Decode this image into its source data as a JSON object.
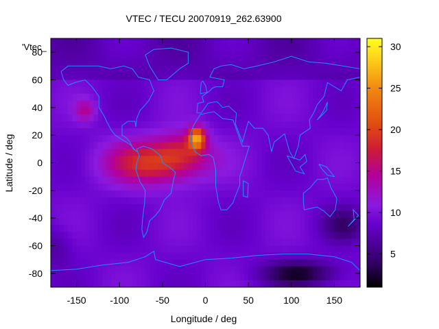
{
  "chart_data": {
    "type": "heatmap",
    "title": "VTEC / TECU 20070919_262.63900",
    "series_label": "'Vtec_",
    "xlabel": "Longitude / deg",
    "ylabel": "Latitude / deg",
    "xlim": [
      -180,
      180
    ],
    "ylim": [
      -90,
      90
    ],
    "x_ticks": [
      -150,
      -100,
      -50,
      0,
      50,
      100,
      150
    ],
    "y_ticks": [
      80,
      60,
      40,
      20,
      0,
      -20,
      -40,
      -60,
      -80
    ],
    "colorbar": {
      "range": [
        1,
        31
      ],
      "ticks": [
        5,
        10,
        15,
        20,
        25,
        30
      ],
      "palette": [
        "#000000",
        "#330066",
        "#6600cc",
        "#8a1adf",
        "#b3009a",
        "#cc1a3a",
        "#e04a10",
        "#f08a10",
        "#ffd21a",
        "#ffff20"
      ]
    },
    "coastline_color": "#1e90ff",
    "field_regions": [
      {
        "name": "background",
        "value": 9
      },
      {
        "name": "anomaly-crest",
        "lon": -45,
        "lat": 2,
        "value": 19
      },
      {
        "name": "peak",
        "lon": -10,
        "lat": 18,
        "value": 30
      },
      {
        "name": "north-pacific-patch",
        "lon": -140,
        "lat": 38,
        "value": 15
      },
      {
        "name": "southern-low",
        "lon": 110,
        "lat": -78,
        "value": 3
      }
    ]
  }
}
